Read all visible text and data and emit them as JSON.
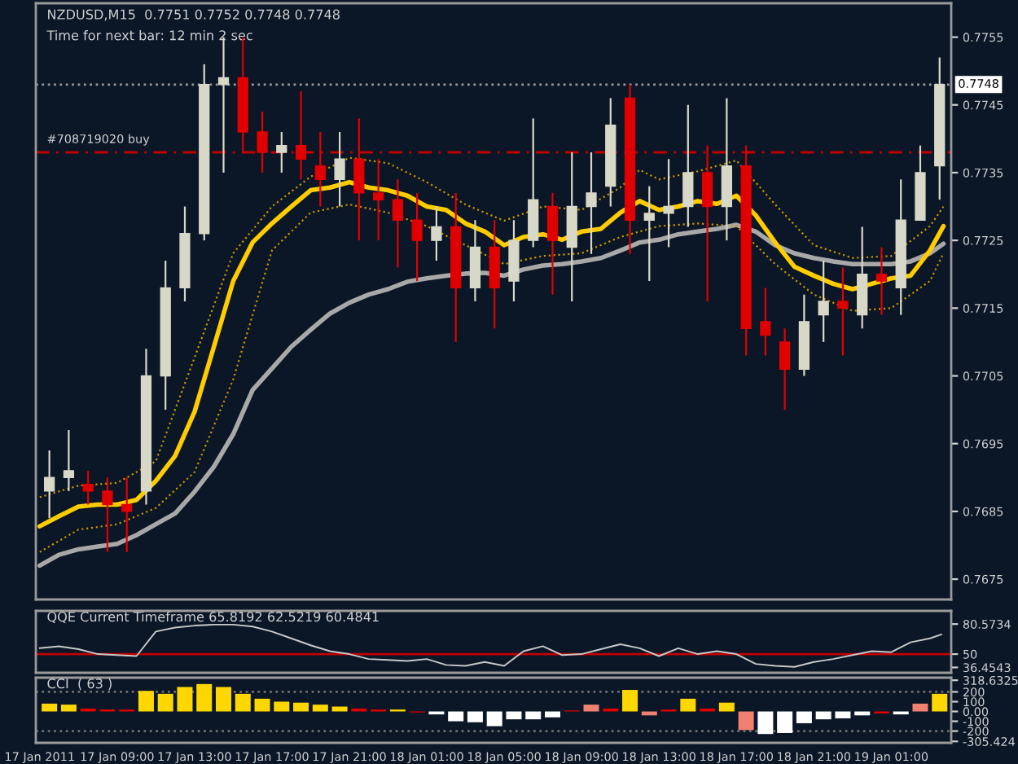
{
  "chart_data": [
    {
      "type": "candlestick",
      "title": "NZDUSD,M15  0.7751 0.7752 0.7748 0.7748",
      "subtitle": "Time for next bar: 12 min 2 sec",
      "x": [
        "2011-01-17T05:30",
        "2011-01-17T06:30",
        "2011-01-17T07:30",
        "2011-01-17T08:30",
        "2011-01-17T09:30",
        "2011-01-17T10:30",
        "2011-01-17T11:30",
        "2011-01-17T12:30",
        "2011-01-17T13:30",
        "2011-01-17T14:30",
        "2011-01-17T15:30",
        "2011-01-17T16:30",
        "2011-01-17T17:30",
        "2011-01-17T18:30",
        "2011-01-17T19:30",
        "2011-01-17T20:30",
        "2011-01-17T21:30",
        "2011-01-17T22:30",
        "2011-01-17T23:30",
        "2011-01-18T00:30",
        "2011-01-18T01:30",
        "2011-01-18T02:30",
        "2011-01-18T03:30",
        "2011-01-18T04:30",
        "2011-01-18T05:30",
        "2011-01-18T06:30",
        "2011-01-18T07:30",
        "2011-01-18T08:30",
        "2011-01-18T09:30",
        "2011-01-18T10:30",
        "2011-01-18T11:30",
        "2011-01-18T12:30",
        "2011-01-18T13:30",
        "2011-01-18T14:30",
        "2011-01-18T15:30",
        "2011-01-18T16:30",
        "2011-01-18T17:30",
        "2011-01-18T18:30",
        "2011-01-18T19:30",
        "2011-01-18T20:30",
        "2011-01-18T21:30",
        "2011-01-18T22:30",
        "2011-01-18T23:30",
        "2011-01-19T00:30",
        "2011-01-19T01:30",
        "2011-01-19T02:30",
        "2011-01-19T03:30"
      ],
      "ohlc": [
        [
          0.7688,
          0.7694,
          0.7684,
          0.769
        ],
        [
          0.769,
          0.7697,
          0.7688,
          0.7691
        ],
        [
          0.7689,
          0.7691,
          0.7686,
          0.7688
        ],
        [
          0.7688,
          0.769,
          0.7679,
          0.7686
        ],
        [
          0.7686,
          0.769,
          0.7679,
          0.7685
        ],
        [
          0.7688,
          0.7709,
          0.7686,
          0.7705
        ],
        [
          0.7705,
          0.7722,
          0.77,
          0.7718
        ],
        [
          0.7718,
          0.773,
          0.7716,
          0.7726
        ],
        [
          0.7726,
          0.7751,
          0.7725,
          0.7748
        ],
        [
          0.7748,
          0.7755,
          0.7735,
          0.7749
        ],
        [
          0.7749,
          0.7755,
          0.7738,
          0.7741
        ],
        [
          0.7741,
          0.7744,
          0.7735,
          0.7738
        ],
        [
          0.7738,
          0.7741,
          0.7735,
          0.7739
        ],
        [
          0.7739,
          0.7747,
          0.7734,
          0.7737
        ],
        [
          0.7736,
          0.7741,
          0.773,
          0.7734
        ],
        [
          0.7734,
          0.7741,
          0.773,
          0.7737
        ],
        [
          0.7737,
          0.7743,
          0.7725,
          0.7732
        ],
        [
          0.7732,
          0.7737,
          0.7725,
          0.7731
        ],
        [
          0.7731,
          0.7734,
          0.7721,
          0.7728
        ],
        [
          0.7728,
          0.7732,
          0.7719,
          0.7725
        ],
        [
          0.7725,
          0.773,
          0.7722,
          0.7727
        ],
        [
          0.7727,
          0.7732,
          0.771,
          0.7718
        ],
        [
          0.7718,
          0.7728,
          0.7716,
          0.7724
        ],
        [
          0.7724,
          0.7728,
          0.7712,
          0.7718
        ],
        [
          0.7719,
          0.7728,
          0.7716,
          0.7725
        ],
        [
          0.7725,
          0.7743,
          0.7724,
          0.7731
        ],
        [
          0.773,
          0.7732,
          0.7717,
          0.7725
        ],
        [
          0.7724,
          0.7738,
          0.7716,
          0.773
        ],
        [
          0.773,
          0.7738,
          0.7723,
          0.7732
        ],
        [
          0.7733,
          0.7746,
          0.773,
          0.7742
        ],
        [
          0.7746,
          0.7748,
          0.7723,
          0.7728
        ],
        [
          0.7728,
          0.7733,
          0.7719,
          0.7729
        ],
        [
          0.7729,
          0.7737,
          0.7724,
          0.773
        ],
        [
          0.773,
          0.7745,
          0.7727,
          0.7735
        ],
        [
          0.7735,
          0.7739,
          0.7716,
          0.773
        ],
        [
          0.773,
          0.7746,
          0.7725,
          0.7736
        ],
        [
          0.7736,
          0.7739,
          0.7708,
          0.7712
        ],
        [
          0.7713,
          0.7718,
          0.7708,
          0.7711
        ],
        [
          0.771,
          0.7712,
          0.77,
          0.7706
        ],
        [
          0.7706,
          0.7717,
          0.7705,
          0.7713
        ],
        [
          0.7714,
          0.7722,
          0.771,
          0.7716
        ],
        [
          0.7716,
          0.7721,
          0.7708,
          0.7715
        ],
        [
          0.7714,
          0.7727,
          0.7712,
          0.772
        ],
        [
          0.772,
          0.7724,
          0.7714,
          0.7719
        ],
        [
          0.7718,
          0.7734,
          0.7714,
          0.7728
        ],
        [
          0.7728,
          0.7739,
          0.7728,
          0.7735
        ],
        [
          0.7736,
          0.7752,
          0.7731,
          0.7748
        ]
      ],
      "colors": [
        "#d8d8c8",
        "#d8d8c8",
        "#e00000",
        "#e00000",
        "#e00000",
        "#d8d8c8",
        "#d8d8c8",
        "#d8d8c8",
        "#d8d8c8",
        "#d8d8c8",
        "#e00000",
        "#e00000",
        "#d8d8c8",
        "#e00000",
        "#e00000",
        "#d8d8c8",
        "#e00000",
        "#e00000",
        "#e00000",
        "#e00000",
        "#d8d8c8",
        "#e00000",
        "#d8d8c8",
        "#e00000",
        "#d8d8c8",
        "#d8d8c8",
        "#e00000",
        "#d8d8c8",
        "#d8d8c8",
        "#d8d8c8",
        "#e00000",
        "#d8d8c8",
        "#d8d8c8",
        "#d8d8c8",
        "#e00000",
        "#d8d8c8",
        "#e00000",
        "#e00000",
        "#e00000",
        "#d8d8c8",
        "#d8d8c8",
        "#e00000",
        "#d8d8c8",
        "#e00000",
        "#d8d8c8",
        "#d8d8c8",
        "#d8d8c8"
      ],
      "series": [
        {
          "type": "line",
          "color": "#a8a8a8",
          "line_style": "solid",
          "x": [
            "2011-01-17T05:00",
            "2011-01-17T06:00",
            "2011-01-17T07:00",
            "2011-01-17T08:00",
            "2011-01-17T09:00",
            "2011-01-17T10:00",
            "2011-01-17T11:00",
            "2011-01-17T12:00",
            "2011-01-17T13:00",
            "2011-01-17T14:00",
            "2011-01-17T15:00",
            "2011-01-17T16:00",
            "2011-01-17T17:00",
            "2011-01-17T18:00",
            "2011-01-17T19:00",
            "2011-01-17T20:00",
            "2011-01-17T21:00",
            "2011-01-17T22:00",
            "2011-01-17T23:00",
            "2011-01-18T00:00",
            "2011-01-18T01:00",
            "2011-01-18T02:00",
            "2011-01-18T03:00",
            "2011-01-18T04:00",
            "2011-01-18T05:00",
            "2011-01-18T06:00",
            "2011-01-18T07:00",
            "2011-01-18T08:00",
            "2011-01-18T09:00",
            "2011-01-18T10:00",
            "2011-01-18T11:00",
            "2011-01-18T12:00",
            "2011-01-18T13:00",
            "2011-01-18T14:00",
            "2011-01-18T15:00",
            "2011-01-18T16:00",
            "2011-01-18T17:00",
            "2011-01-18T18:00",
            "2011-01-18T19:00",
            "2011-01-18T20:00",
            "2011-01-18T21:00",
            "2011-01-18T22:00",
            "2011-01-18T23:00",
            "2011-01-19T00:00",
            "2011-01-19T01:00",
            "2011-01-19T02:00",
            "2011-01-19T03:00",
            "2011-01-19T03:42"
          ],
          "values": [
            0.7677,
            0.76786,
            0.76794,
            0.76798,
            0.76802,
            0.76815,
            0.76831,
            0.76847,
            0.76879,
            0.76916,
            0.76964,
            0.77029,
            0.77061,
            0.77093,
            0.77118,
            0.77142,
            0.77158,
            0.7717,
            0.77178,
            0.77189,
            0.77194,
            0.77198,
            0.77201,
            0.77202,
            0.77198,
            0.77207,
            0.77213,
            0.77215,
            0.77219,
            0.77224,
            0.77235,
            0.77247,
            0.77251,
            0.77259,
            0.77263,
            0.77267,
            0.77273,
            0.77263,
            0.77243,
            0.77231,
            0.77224,
            0.77219,
            0.77215,
            0.77215,
            0.77215,
            0.77219,
            0.77231,
            0.77245
          ]
        },
        {
          "type": "line",
          "color": "#c89600",
          "line_style": "dotted",
          "x": [
            "2011-01-17T05:00",
            "2011-01-17T07:00",
            "2011-01-17T09:00",
            "2011-01-17T11:00",
            "2011-01-17T13:00",
            "2011-01-17T15:00",
            "2011-01-17T17:00",
            "2011-01-17T19:00",
            "2011-01-17T21:00",
            "2011-01-17T23:00",
            "2011-01-18T01:00",
            "2011-01-18T03:00",
            "2011-01-18T05:00",
            "2011-01-18T07:00",
            "2011-01-18T09:00",
            "2011-01-18T11:00",
            "2011-01-18T12:00",
            "2011-01-18T13:00",
            "2011-01-18T15:00",
            "2011-01-18T17:00",
            "2011-01-18T19:00",
            "2011-01-18T21:00",
            "2011-01-18T23:00",
            "2011-01-19T01:00",
            "2011-01-19T03:00",
            "2011-01-19T03:42"
          ],
          "values": [
            0.76871,
            0.76888,
            0.76892,
            0.76924,
            0.77077,
            0.77231,
            0.773,
            0.77344,
            0.77372,
            0.77364,
            0.77336,
            0.77303,
            0.77279,
            0.773,
            0.77295,
            0.77328,
            0.77354,
            0.7734,
            0.77352,
            0.77368,
            0.77303,
            0.77243,
            0.77224,
            0.77227,
            0.77271,
            0.773
          ]
        },
        {
          "type": "line",
          "color": "#c89600",
          "line_style": "dotted",
          "x": [
            "2011-01-17T05:00",
            "2011-01-17T07:00",
            "2011-01-17T09:00",
            "2011-01-17T11:00",
            "2011-01-17T13:00",
            "2011-01-17T15:00",
            "2011-01-17T17:00",
            "2011-01-17T19:00",
            "2011-01-17T21:00",
            "2011-01-17T23:00",
            "2011-01-18T01:00",
            "2011-01-18T03:00",
            "2011-01-18T05:00",
            "2011-01-18T07:00",
            "2011-01-18T09:00",
            "2011-01-18T11:00",
            "2011-01-18T13:00",
            "2011-01-18T15:00",
            "2011-01-18T17:00",
            "2011-01-18T19:00",
            "2011-01-18T21:00",
            "2011-01-18T23:00",
            "2011-01-19T01:00",
            "2011-01-19T03:00",
            "2011-01-19T03:42"
          ],
          "values": [
            0.7679,
            0.76823,
            0.76831,
            0.76855,
            0.76908,
            0.77045,
            0.77235,
            0.77291,
            0.77303,
            0.77291,
            0.77271,
            0.77243,
            0.77215,
            0.77227,
            0.77231,
            0.77255,
            0.77271,
            0.77275,
            0.77271,
            0.77215,
            0.7717,
            0.77146,
            0.7715,
            0.7719,
            0.77231
          ]
        },
        {
          "type": "line",
          "color": "#ffcc00",
          "line_style": "solid",
          "x": [
            "2011-01-17T05:00",
            "2011-01-17T06:00",
            "2011-01-17T07:00",
            "2011-01-17T08:00",
            "2011-01-17T09:00",
            "2011-01-17T10:00",
            "2011-01-17T11:00",
            "2011-01-17T12:00",
            "2011-01-17T13:00",
            "2011-01-17T14:00",
            "2011-01-17T15:00",
            "2011-01-17T16:00",
            "2011-01-17T17:00",
            "2011-01-17T18:00",
            "2011-01-17T19:00",
            "2011-01-17T20:00",
            "2011-01-17T21:00",
            "2011-01-17T22:00",
            "2011-01-17T23:00",
            "2011-01-18T00:00",
            "2011-01-18T01:00",
            "2011-01-18T02:00",
            "2011-01-18T03:00",
            "2011-01-18T04:00",
            "2011-01-18T05:00",
            "2011-01-18T06:00",
            "2011-01-18T07:00",
            "2011-01-18T08:00",
            "2011-01-18T09:00",
            "2011-01-18T10:00",
            "2011-01-18T11:00",
            "2011-01-18T12:00",
            "2011-01-18T13:00",
            "2011-01-18T14:00",
            "2011-01-18T15:00",
            "2011-01-18T16:00",
            "2011-01-18T17:00",
            "2011-01-18T18:00",
            "2011-01-18T19:00",
            "2011-01-18T20:00",
            "2011-01-18T21:00",
            "2011-01-18T22:00",
            "2011-01-18T23:00",
            "2011-01-19T00:00",
            "2011-01-19T01:00",
            "2011-01-19T02:00",
            "2011-01-19T03:00",
            "2011-01-19T03:42"
          ],
          "values": [
            0.76828,
            0.76843,
            0.76857,
            0.7686,
            0.7686,
            0.76867,
            0.76895,
            0.76932,
            0.76997,
            0.77093,
            0.7719,
            0.77247,
            0.77275,
            0.773,
            0.77324,
            0.77328,
            0.77336,
            0.77328,
            0.77324,
            0.77316,
            0.773,
            0.77295,
            0.77275,
            0.77263,
            0.77243,
            0.77255,
            0.77259,
            0.77251,
            0.77263,
            0.77267,
            0.77291,
            0.77308,
            0.77295,
            0.773,
            0.77308,
            0.77304,
            0.77316,
            0.77287,
            0.77247,
            0.77211,
            0.77198,
            0.77186,
            0.77178,
            0.77186,
            0.77194,
            0.77198,
            0.77235,
            0.77271
          ]
        }
      ],
      "ref_lines": [
        {
          "axis": "y",
          "value": 0.7748,
          "label": "0.7748",
          "color": "#9a9a9a",
          "line_style": "dotted"
        },
        {
          "axis": "y",
          "value": 0.7738,
          "label": "#708719020 buy",
          "color": "#c00000",
          "line_style": "dashed"
        }
      ],
      "xlim": [
        "2011-01-17T04:48",
        "2011-01-19T04:06"
      ],
      "ylim": [
        0.7672,
        0.776
      ],
      "yticks": [
        0.7755,
        0.7745,
        0.7735,
        0.7725,
        0.7715,
        0.7705,
        0.7695,
        0.7685,
        0.7675
      ],
      "tick_labels": "y"
    },
    {
      "type": "line",
      "title": "QQE Current Timeframe 65.8192 62.5219 60.4841",
      "series": [
        {
          "type": "line",
          "color": "#c8c8c8",
          "x": [
            "2011-01-17T05:00",
            "2011-01-17T06:00",
            "2011-01-17T07:00",
            "2011-01-17T08:00",
            "2011-01-17T09:00",
            "2011-01-17T10:00",
            "2011-01-17T11:00",
            "2011-01-17T12:00",
            "2011-01-17T13:00",
            "2011-01-17T14:00",
            "2011-01-17T15:00",
            "2011-01-17T16:00",
            "2011-01-17T17:00",
            "2011-01-17T18:00",
            "2011-01-17T19:00",
            "2011-01-17T20:00",
            "2011-01-17T21:00",
            "2011-01-17T22:00",
            "2011-01-17T23:00",
            "2011-01-18T00:00",
            "2011-01-18T01:00",
            "2011-01-18T02:00",
            "2011-01-18T03:00",
            "2011-01-18T04:00",
            "2011-01-18T05:00",
            "2011-01-18T06:00",
            "2011-01-18T07:00",
            "2011-01-18T08:00",
            "2011-01-18T09:00",
            "2011-01-18T10:00",
            "2011-01-18T11:00",
            "2011-01-18T12:00",
            "2011-01-18T13:00",
            "2011-01-18T14:00",
            "2011-01-18T15:00",
            "2011-01-18T16:00",
            "2011-01-18T17:00",
            "2011-01-18T18:00",
            "2011-01-18T19:00",
            "2011-01-18T20:00",
            "2011-01-18T21:00",
            "2011-01-18T22:00",
            "2011-01-18T23:00",
            "2011-01-19T00:00",
            "2011-01-19T01:00",
            "2011-01-19T02:00",
            "2011-01-19T03:00",
            "2011-01-19T03:36"
          ],
          "values": [
            56,
            58,
            55,
            50,
            49,
            48,
            73,
            77,
            79,
            80,
            80,
            78,
            73,
            66,
            59,
            53,
            50,
            45,
            44,
            43,
            45,
            39,
            38,
            42,
            38,
            53,
            58,
            49,
            50,
            55,
            60,
            56,
            48,
            56,
            50,
            53,
            50,
            40,
            38,
            37,
            42,
            45,
            49,
            53,
            52,
            62,
            66,
            70
          ]
        }
      ],
      "ref_lines": [
        {
          "axis": "y",
          "value": 50,
          "color": "#c00000"
        }
      ],
      "xlim": [
        "2011-01-17T04:48",
        "2011-01-19T04:06"
      ],
      "ylim": [
        31,
        94
      ],
      "yticks": [
        80.5734,
        50,
        36.4543
      ],
      "tick_labels": "y"
    },
    {
      "type": "bar",
      "title": "CCI  ( 63 )",
      "x": [
        "2011-01-17T05:30",
        "2011-01-17T06:30",
        "2011-01-17T07:30",
        "2011-01-17T08:30",
        "2011-01-17T09:30",
        "2011-01-17T10:30",
        "2011-01-17T11:30",
        "2011-01-17T12:30",
        "2011-01-17T13:30",
        "2011-01-17T14:30",
        "2011-01-17T15:30",
        "2011-01-17T16:30",
        "2011-01-17T17:30",
        "2011-01-17T18:30",
        "2011-01-17T19:30",
        "2011-01-17T20:30",
        "2011-01-17T21:30",
        "2011-01-17T22:30",
        "2011-01-17T23:30",
        "2011-01-18T00:30",
        "2011-01-18T01:30",
        "2011-01-18T02:30",
        "2011-01-18T03:30",
        "2011-01-18T04:30",
        "2011-01-18T05:30",
        "2011-01-18T06:30",
        "2011-01-18T07:30",
        "2011-01-18T08:30",
        "2011-01-18T09:30",
        "2011-01-18T10:30",
        "2011-01-18T11:30",
        "2011-01-18T12:30",
        "2011-01-18T13:30",
        "2011-01-18T14:30",
        "2011-01-18T15:30",
        "2011-01-18T16:30",
        "2011-01-18T17:30",
        "2011-01-18T18:30",
        "2011-01-18T19:30",
        "2011-01-18T20:30",
        "2011-01-18T21:30",
        "2011-01-18T22:30",
        "2011-01-18T23:30",
        "2011-01-19T00:30",
        "2011-01-19T01:30",
        "2011-01-19T02:30",
        "2011-01-19T03:30"
      ],
      "values": [
        80,
        70,
        30,
        20,
        20,
        210,
        180,
        250,
        280,
        250,
        180,
        130,
        100,
        90,
        70,
        50,
        30,
        20,
        20,
        -10,
        -30,
        -100,
        -110,
        -150,
        -80,
        -80,
        -60,
        10,
        70,
        30,
        220,
        -40,
        20,
        130,
        30,
        90,
        -190,
        -230,
        -220,
        -120,
        -80,
        -70,
        -40,
        -20,
        -30,
        80,
        180
      ],
      "colors": [
        "#ffd700",
        "#ffd700",
        "#e00000",
        "#e00000",
        "#e00000",
        "#ffd700",
        "#ffd700",
        "#ffd700",
        "#ffd700",
        "#ffd700",
        "#ffd700",
        "#ffd700",
        "#ffd700",
        "#ffd700",
        "#ffd700",
        "#ffd700",
        "#e00000",
        "#e00000",
        "#ffd700",
        "#e00000",
        "#ffffff",
        "#ffffff",
        "#ffffff",
        "#ffffff",
        "#ffffff",
        "#ffffff",
        "#ffffff",
        "#e00000",
        "#f08070",
        "#e00000",
        "#ffd700",
        "#f08070",
        "#e00000",
        "#ffd700",
        "#e00000",
        "#ffd700",
        "#f08070",
        "#ffffff",
        "#ffffff",
        "#ffffff",
        "#ffffff",
        "#ffffff",
        "#ffffff",
        "#e00000",
        "#ffffff",
        "#f08070",
        "#ffd700"
      ],
      "ref_lines": [
        {
          "axis": "y",
          "value": 200,
          "color": "#707070",
          "line_style": "dotted"
        },
        {
          "axis": "y",
          "value": -200,
          "color": "#707070",
          "line_style": "dotted"
        }
      ],
      "xlim": [
        "2011-01-17T04:48",
        "2011-01-19T04:06"
      ],
      "ylim": [
        -320,
        345
      ],
      "yticks": [
        318.6325,
        200,
        100,
        {
          "value": 0,
          "label": "0.00"
        },
        -100,
        -200,
        -305.424
      ],
      "xticks": [
        {
          "value": "2011-01-17T05:00",
          "label": "17 Jan 2011"
        },
        {
          "value": "2011-01-17T09:00",
          "label": "17 Jan 09:00"
        },
        {
          "value": "2011-01-17T13:00",
          "label": "17 Jan 13:00"
        },
        {
          "value": "2011-01-17T17:00",
          "label": "17 Jan 17:00"
        },
        {
          "value": "2011-01-17T21:00",
          "label": "17 Jan 21:00"
        },
        {
          "value": "2011-01-18T01:00",
          "label": "18 Jan 01:00"
        },
        {
          "value": "2011-01-18T05:00",
          "label": "18 Jan 05:00"
        },
        {
          "value": "2011-01-18T09:00",
          "label": "18 Jan 09:00"
        },
        {
          "value": "2011-01-18T13:00",
          "label": "18 Jan 13:00"
        },
        {
          "value": "2011-01-18T17:00",
          "label": "18 Jan 17:00"
        },
        {
          "value": "2011-01-18T21:00",
          "label": "18 Jan 21:00"
        },
        {
          "value": "2011-01-19T01:00",
          "label": "19 Jan 01:00"
        }
      ]
    }
  ]
}
